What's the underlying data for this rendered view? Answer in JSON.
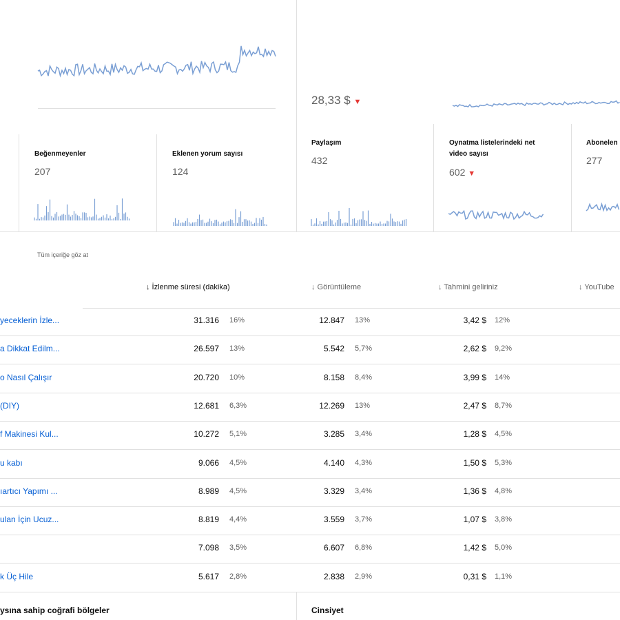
{
  "overview": {
    "revenue_value": "28,33 $",
    "revenue_trend": "▼"
  },
  "cards": [
    {
      "title": "Beğenmeyenler",
      "value": "207"
    },
    {
      "title": "Eklenen yorum sayısı",
      "value": "124"
    },
    {
      "title": "Paylaşım",
      "value": "432"
    },
    {
      "title": "Oynatma listelerindeki net video sayısı",
      "value": "602",
      "trend": "▼"
    },
    {
      "title": "Abonelen",
      "value": "277"
    }
  ],
  "table": {
    "link": "Tüm içeriğe göz at",
    "headers": [
      "↓ İzlenme süresi (dakika)",
      "↓ Görüntüleme",
      "↓ Tahmini geliriniz",
      "↓ YouTube"
    ],
    "rows": [
      {
        "title": "yeceklerin İzle...",
        "cells": [
          "31.316",
          "16%",
          "12.847",
          "13%",
          "3,42 $",
          "12%"
        ]
      },
      {
        "title": "a Dikkat Edilm...",
        "cells": [
          "26.597",
          "13%",
          "5.542",
          "5,7%",
          "2,62 $",
          "9,2%"
        ]
      },
      {
        "title": "o Nasıl Çalışır",
        "cells": [
          "20.720",
          "10%",
          "8.158",
          "8,4%",
          "3,99 $",
          "14%"
        ]
      },
      {
        "title": "(DIY)",
        "cells": [
          "12.681",
          "6,3%",
          "12.269",
          "13%",
          "2,47 $",
          "8,7%"
        ]
      },
      {
        "title": "f Makinesi Kul...",
        "cells": [
          "10.272",
          "5,1%",
          "3.285",
          "3,4%",
          "1,28 $",
          "4,5%"
        ]
      },
      {
        "title": "u kabı",
        "cells": [
          "9.066",
          "4,5%",
          "4.140",
          "4,3%",
          "1,50 $",
          "5,3%"
        ]
      },
      {
        "title": "ıartıcı Yapımı ...",
        "cells": [
          "8.989",
          "4,5%",
          "3.329",
          "3,4%",
          "1,36 $",
          "4,8%"
        ]
      },
      {
        "title": "ulan İçin Ucuz...",
        "cells": [
          "8.819",
          "4,4%",
          "3.559",
          "3,7%",
          "1,07 $",
          "3,8%"
        ]
      },
      {
        "cells": [
          "7.098",
          "3,5%",
          "6.607",
          "6,8%",
          "1,42 $",
          "5,0%"
        ]
      },
      {
        "title": "k Üç Hile",
        "cells": [
          "5.617",
          "2,8%",
          "2.838",
          "2,9%",
          "0,31 $",
          "1,1%"
        ]
      }
    ]
  },
  "bottom": {
    "left": "ysına sahip coğrafi bölgeler",
    "right": "Cinsiyet"
  }
}
